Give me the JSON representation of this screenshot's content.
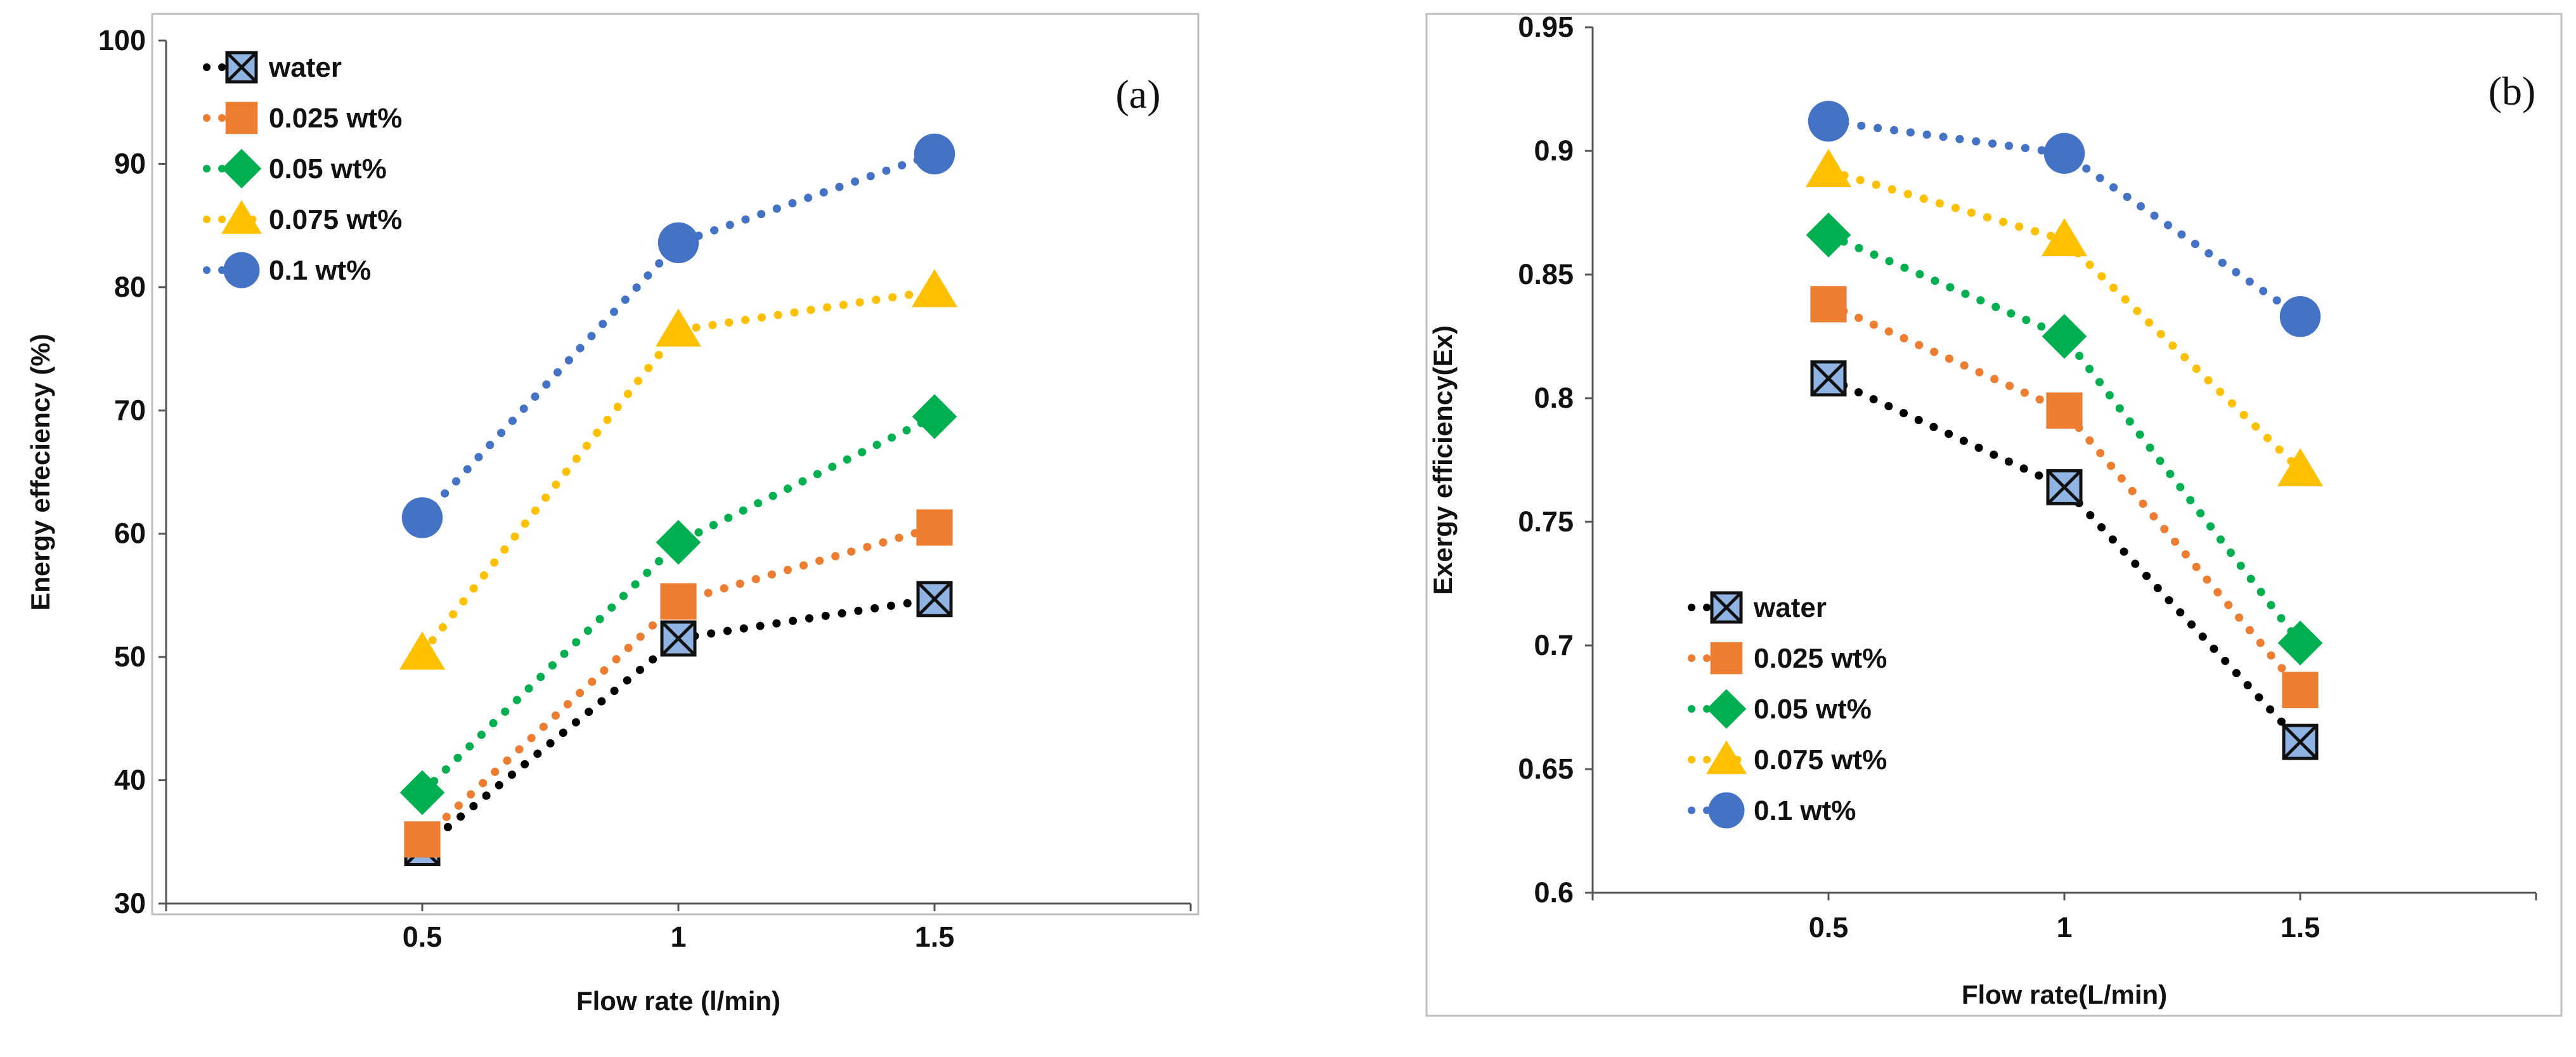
{
  "chart_data": [
    {
      "type": "line",
      "panel_label": "(a)",
      "xlabel": "Flow rate (l/min)",
      "ylabel": "Energy effeciency (%)",
      "x": [
        0.5,
        1,
        1.5
      ],
      "x_tick_labels": [
        "0.5",
        "1",
        "1.5"
      ],
      "xlim": [
        0,
        2
      ],
      "ylim": [
        30,
        100
      ],
      "y_tick_labels": [
        "30",
        "40",
        "50",
        "60",
        "70",
        "80",
        "90",
        "100"
      ],
      "grid": false,
      "legend_position": "top-left",
      "series": [
        {
          "name": "water",
          "color": "#000000",
          "marker": "boxed-x",
          "values": [
            34.5,
            51.5,
            54.7
          ]
        },
        {
          "name": "0.025 wt%",
          "color": "#ED7D31",
          "marker": "square",
          "values": [
            35.2,
            54.5,
            60.5
          ]
        },
        {
          "name": "0.05 wt%",
          "color": "#00B050",
          "marker": "diamond",
          "values": [
            39.0,
            59.3,
            69.5
          ]
        },
        {
          "name": "0.075 wt%",
          "color": "#FFC000",
          "marker": "triangle",
          "values": [
            50.3,
            76.5,
            79.7
          ]
        },
        {
          "name": "0.1 wt%",
          "color": "#4472C4",
          "marker": "circle",
          "values": [
            61.3,
            83.6,
            90.8
          ]
        }
      ]
    },
    {
      "type": "line",
      "panel_label": "(b)",
      "xlabel": "Flow rate(L/min)",
      "ylabel": "Exergy efficiency(Ex)",
      "x": [
        0.5,
        1,
        1.5
      ],
      "x_tick_labels": [
        "0.5",
        "1",
        "1.5"
      ],
      "xlim": [
        0,
        2
      ],
      "ylim": [
        0.6,
        0.95
      ],
      "y_tick_labels": [
        "0.6",
        "0.65",
        "0.7",
        "0.75",
        "0.8",
        "0.85",
        "0.9",
        "0.95"
      ],
      "grid": false,
      "legend_position": "bottom-left",
      "series": [
        {
          "name": "water",
          "color": "#000000",
          "marker": "boxed-x",
          "values": [
            0.808,
            0.764,
            0.661
          ]
        },
        {
          "name": "0.025 wt%",
          "color": "#ED7D31",
          "marker": "square",
          "values": [
            0.838,
            0.795,
            0.682
          ]
        },
        {
          "name": "0.05 wt%",
          "color": "#00B050",
          "marker": "diamond",
          "values": [
            0.866,
            0.825,
            0.701
          ]
        },
        {
          "name": "0.075 wt%",
          "color": "#FFC000",
          "marker": "triangle",
          "values": [
            0.892,
            0.864,
            0.771
          ]
        },
        {
          "name": "0.1 wt%",
          "color": "#4472C4",
          "marker": "circle",
          "values": [
            0.912,
            0.899,
            0.833
          ]
        }
      ]
    }
  ]
}
